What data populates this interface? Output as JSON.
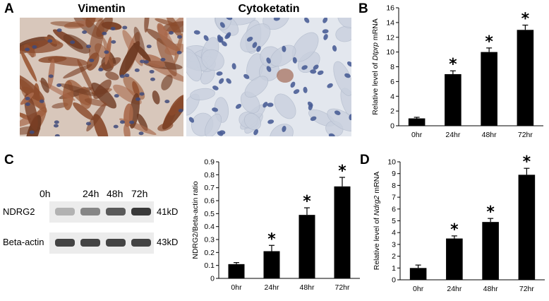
{
  "panels": {
    "A": {
      "letter": "A",
      "images": [
        {
          "title": "Vimentin",
          "stain": "#9a5a35"
        },
        {
          "title": "Cytoketatin",
          "stain": "#5f72a8"
        }
      ]
    },
    "C_blot": {
      "letter": "C",
      "lanes": [
        "0h",
        "24h",
        "48h",
        "72h"
      ],
      "rows": [
        {
          "name": "NDRG2",
          "size": "41kD",
          "intensity": [
            0.35,
            0.55,
            0.75,
            0.9
          ]
        },
        {
          "name": "Beta-actin",
          "size": "43kD",
          "intensity": [
            0.85,
            0.85,
            0.85,
            0.85
          ]
        }
      ]
    }
  },
  "chart_data": [
    {
      "id": "B",
      "letter": "B",
      "type": "bar",
      "categories": [
        "0hr",
        "24hr",
        "48hr",
        "72hr"
      ],
      "values": [
        1,
        7,
        10,
        13
      ],
      "errors": [
        0.15,
        0.45,
        0.55,
        0.65
      ],
      "significant": [
        false,
        true,
        true,
        true
      ],
      "ylabel_pre": "Relative level of ",
      "ylabel_gene": "Dtprp",
      "ylabel_post": " mRNA",
      "ylim": [
        0,
        16
      ],
      "yticks": [
        0,
        2,
        4,
        6,
        8,
        10,
        12,
        14,
        16
      ],
      "bar_color": "#000000"
    },
    {
      "id": "C",
      "type": "bar",
      "categories": [
        "0hr",
        "24hr",
        "48hr",
        "72hr"
      ],
      "values": [
        0.11,
        0.21,
        0.49,
        0.71
      ],
      "errors": [
        0.012,
        0.045,
        0.055,
        0.07
      ],
      "significant": [
        false,
        true,
        true,
        true
      ],
      "ylabel_pre": "NDRG2/Beta-actin ratio",
      "ylabel_gene": "",
      "ylabel_post": "",
      "ylim": [
        0,
        0.9
      ],
      "yticks": [
        "0",
        "0.1",
        "0.2",
        "0.3",
        "0.4",
        "0.5",
        "0.6",
        "0.7",
        "0.8",
        "0.9"
      ],
      "bar_color": "#000000"
    },
    {
      "id": "D",
      "letter": "D",
      "type": "bar",
      "categories": [
        "0hr",
        "24hr",
        "48hr",
        "72hr"
      ],
      "values": [
        1,
        3.5,
        4.9,
        8.9
      ],
      "errors": [
        0.25,
        0.22,
        0.3,
        0.55
      ],
      "significant": [
        false,
        true,
        true,
        true
      ],
      "ylabel_pre": "Relative level of ",
      "ylabel_gene": "Ndrg2",
      "ylabel_post": " mRNA",
      "ylim": [
        0,
        10
      ],
      "yticks": [
        0,
        1,
        2,
        3,
        4,
        5,
        6,
        7,
        8,
        9,
        10
      ],
      "bar_color": "#000000"
    }
  ]
}
